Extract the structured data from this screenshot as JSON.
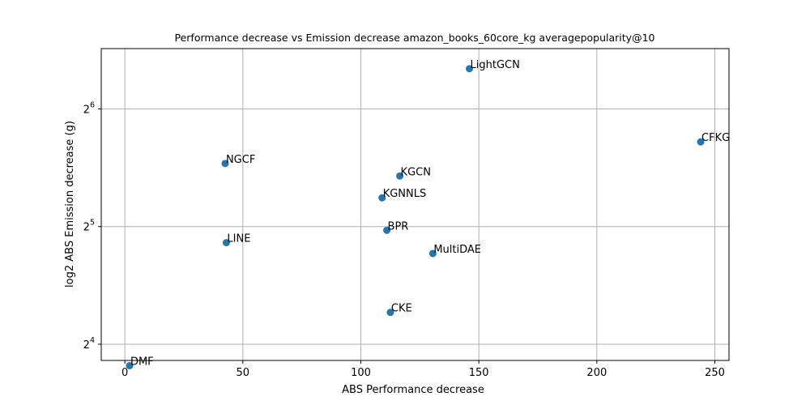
{
  "chart_data": {
    "type": "scatter",
    "title": "Performance decrease vs Emission decrease amazon_books_60core_kg averagepopularity@10",
    "xlabel": "ABS Performance decrease",
    "ylabel": "log2 ABS Emission decrease (g)",
    "x_scale": "linear",
    "y_scale": "log2",
    "xlim": [
      -10,
      256
    ],
    "ylim": [
      14.54,
      91.3
    ],
    "x_ticks": [
      {
        "value": 0,
        "label": "0"
      },
      {
        "value": 50,
        "label": "50"
      },
      {
        "value": 100,
        "label": "100"
      },
      {
        "value": 150,
        "label": "150"
      },
      {
        "value": 200,
        "label": "200"
      },
      {
        "value": 250,
        "label": "250"
      }
    ],
    "y_ticks": [
      {
        "value": 16,
        "base": "2",
        "exp": "4"
      },
      {
        "value": 32,
        "base": "2",
        "exp": "5"
      },
      {
        "value": 64,
        "base": "2",
        "exp": "6"
      }
    ],
    "grid": true,
    "marker_color": "#1f77b4",
    "points": [
      {
        "label": "LightGCN",
        "x": 146,
        "y": 81.1
      },
      {
        "label": "CFKG",
        "x": 244,
        "y": 52.7
      },
      {
        "label": "NGCF",
        "x": 42.5,
        "y": 46.4
      },
      {
        "label": "KGCN",
        "x": 116.5,
        "y": 43.1
      },
      {
        "label": "KGNNLS",
        "x": 109,
        "y": 37.9
      },
      {
        "label": "BPR",
        "x": 111,
        "y": 31.3
      },
      {
        "label": "LINE",
        "x": 43,
        "y": 29.1
      },
      {
        "label": "MultiDAE",
        "x": 130.5,
        "y": 27.3
      },
      {
        "label": "CKE",
        "x": 112.5,
        "y": 19.3
      },
      {
        "label": "DMF",
        "x": 2,
        "y": 14.1
      }
    ]
  }
}
